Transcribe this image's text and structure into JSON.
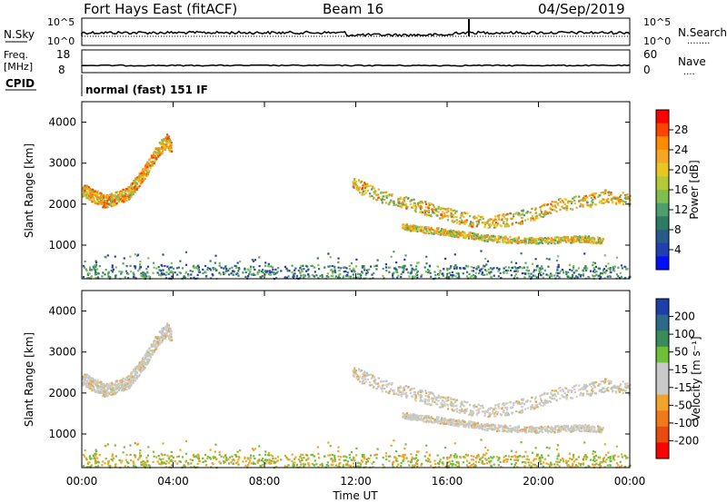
{
  "header": {
    "station": "Fort Hays East (fitACF)",
    "beam": "Beam 16",
    "date": "04/Sep/2019"
  },
  "noise_panel": {
    "left_label": "N.Sky",
    "left_tick_top": "10^5",
    "left_tick_bottom": "10^0",
    "right_tick_top": "10^5",
    "right_tick_bottom": "10^0",
    "right_label": "N.Search",
    "right_label_dots": "........"
  },
  "freq_panel": {
    "left_label_line1": "Freq.",
    "left_label_line2": "[MHz]",
    "left_tick_top": "18",
    "left_tick_bottom": "8",
    "right_tick_top": "60",
    "right_tick_bottom": "0",
    "right_label": "Nave",
    "right_label_dots": "...."
  },
  "cpid": {
    "label": "CPID",
    "value": "normal (fast) 151 IF"
  },
  "colorbars": {
    "power": {
      "label": "Power [dB]",
      "ticks": [
        "28",
        "24",
        "20",
        "16",
        "12",
        "8",
        "4"
      ],
      "colors": [
        "#ff0000",
        "#ff4400",
        "#ff8c00",
        "#f5a623",
        "#e8c820",
        "#b5c83a",
        "#7fbf52",
        "#4f9d6a",
        "#2e7a63",
        "#2a5a8a",
        "#2040b0",
        "#0010ff"
      ]
    },
    "velocity": {
      "label": "Velocity [m s⁻¹]",
      "ticks": [
        "200",
        "100",
        "50",
        "15",
        "-15",
        "-50",
        "-100",
        "-200"
      ],
      "colors": [
        "#1d3fa8",
        "#2d6a8a",
        "#3a8a5a",
        "#6fbf3a",
        "#c9c9c9",
        "#c9c9c9",
        "#f2a32a",
        "#f07a1a",
        "#e84a10",
        "#ff0000"
      ]
    }
  },
  "axes": {
    "ylabel": "Slant Range [km]",
    "yticks": [
      "4000",
      "3000",
      "2000",
      "1000"
    ],
    "xticks": [
      "00:00",
      "04:00",
      "08:00",
      "12:00",
      "16:00",
      "20:00",
      "00:00"
    ],
    "xlabel": "Time UT"
  },
  "chart_data": {
    "type": "heatmap",
    "title": "Fort Hays East (fitACF)",
    "x_range_hours_ut": [
      0,
      24
    ],
    "y_range_km": [
      180,
      4500
    ],
    "power_range_db": [
      0,
      30
    ],
    "velocity_range_ms": [
      -250,
      250
    ],
    "echo_bands": [
      {
        "name": "early-band",
        "t_hours": [
          0.0,
          1.0,
          2.0,
          2.7,
          3.3,
          3.7,
          3.9
        ],
        "range_km": [
          2350,
          2050,
          2250,
          2750,
          3300,
          3550,
          3400
        ],
        "power_db": 22,
        "velocity_ms": -10
      },
      {
        "name": "evening-main",
        "t_hours": [
          11.8,
          13.0,
          14.0,
          15.0,
          16.0,
          17.0,
          18.0,
          19.0,
          20.0,
          21.0,
          22.0,
          23.0,
          24.0
        ],
        "range_km": [
          2500,
          2200,
          2050,
          1900,
          1750,
          1600,
          1550,
          1650,
          1800,
          2000,
          2050,
          2200,
          2100
        ],
        "power_db": 18,
        "velocity_ms": 0
      },
      {
        "name": "evening-lower",
        "t_hours": [
          14.0,
          16.0,
          18.0,
          20.0,
          22.0,
          22.8
        ],
        "range_km": [
          1450,
          1300,
          1150,
          1100,
          1150,
          1100
        ],
        "power_db": 15,
        "velocity_ms": -5
      },
      {
        "name": "near-range-clutter",
        "t_hours": [
          0,
          24
        ],
        "range_km": [
          180,
          500
        ],
        "power_db": 8,
        "velocity_ms": -30
      }
    ]
  }
}
